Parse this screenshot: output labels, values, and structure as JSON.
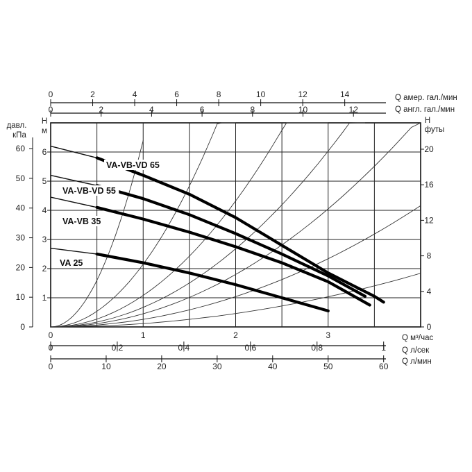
{
  "chart_data": {
    "type": "line",
    "series": [
      {
        "name": "VA-VB-VD 65",
        "x": [
          0.0,
          0.5,
          1.0,
          1.5,
          2.0,
          2.5,
          3.0,
          3.5,
          3.6
        ],
        "y": [
          6.2,
          5.8,
          5.2,
          4.55,
          3.75,
          2.8,
          1.85,
          1.05,
          0.85
        ]
      },
      {
        "name": "VA-VB-VD 55",
        "x": [
          0.0,
          0.5,
          1.0,
          1.5,
          2.0,
          2.5,
          3.0,
          3.4
        ],
        "y": [
          5.2,
          4.85,
          4.4,
          3.85,
          3.2,
          2.5,
          1.75,
          1.05
        ]
      },
      {
        "name": "VA-VB 35",
        "x": [
          0.0,
          0.5,
          1.0,
          1.5,
          2.0,
          2.5,
          3.0,
          3.45
        ],
        "y": [
          4.45,
          4.1,
          3.7,
          3.25,
          2.75,
          2.2,
          1.55,
          0.75
        ]
      },
      {
        "name": "VA 25",
        "x": [
          0.0,
          0.5,
          1.0,
          1.5,
          2.0,
          2.5,
          3.0
        ],
        "y": [
          2.7,
          2.5,
          2.2,
          1.85,
          1.45,
          1.0,
          0.55
        ]
      }
    ],
    "system_curves": [
      {
        "k": 6.4,
        "x_end": 1.0
      },
      {
        "k": 2.15,
        "x_end": 2.0
      },
      {
        "k": 1.08,
        "x_end": 3.0
      },
      {
        "k": 0.67,
        "x_end": 3.4
      },
      {
        "k": 0.45,
        "x_end": 4.0
      },
      {
        "k": 0.26,
        "x_end": 4.0
      },
      {
        "k": 0.115,
        "x_end": 4.0
      }
    ],
    "x_range": [
      0,
      4
    ],
    "y_range": [
      0,
      7
    ],
    "grid": true,
    "left_axis_H": {
      "label": "H\nм",
      "ticks": [
        "1",
        "2",
        "3",
        "4",
        "5",
        "6"
      ],
      "values": [
        1,
        2,
        3,
        4,
        5,
        6
      ]
    },
    "left_axis_kPa": {
      "label": "давл.\nкПа",
      "ticks": [
        "0",
        "10",
        "20",
        "30",
        "40",
        "50",
        "60"
      ],
      "values": [
        0,
        10,
        20,
        30,
        40,
        50,
        60
      ]
    },
    "right_axis_ft": {
      "label": "H\nфуты",
      "ticks": [
        "0",
        "4",
        "8",
        "12",
        "16",
        "20"
      ],
      "values": [
        0,
        4,
        8,
        12,
        16,
        20
      ]
    },
    "bottom_axis_m3h": {
      "label": "Q  м³/час",
      "ticks": [
        "0",
        "1",
        "2",
        "3"
      ],
      "values": [
        0,
        1,
        2,
        3
      ]
    },
    "bottom_axis_ls": {
      "label": "Q  л/сек",
      "ticks": [
        "0",
        "0,2",
        "0,4",
        "0,6",
        "0,8",
        "1"
      ],
      "values": [
        0,
        0.2,
        0.4,
        0.6,
        0.8,
        1
      ]
    },
    "bottom_axis_lmin": {
      "label": "Q  л/мин",
      "ticks": [
        "0",
        "10",
        "20",
        "30",
        "40",
        "50",
        "60"
      ],
      "values": [
        0,
        10,
        20,
        30,
        40,
        50,
        60
      ]
    },
    "top_axis_usgpm": {
      "label": "Q  амер. гал./мин",
      "ticks": [
        "0",
        "2",
        "4",
        "6",
        "8",
        "10",
        "12",
        "14"
      ],
      "values": [
        0,
        2,
        4,
        6,
        8,
        10,
        12,
        14
      ]
    },
    "top_axis_impgpm": {
      "label": "Q  англ. гал./мин",
      "ticks": [
        "0",
        "2",
        "4",
        "6",
        "8",
        "10",
        "12"
      ],
      "values": [
        0,
        2,
        4,
        6,
        8,
        10,
        12
      ]
    }
  }
}
